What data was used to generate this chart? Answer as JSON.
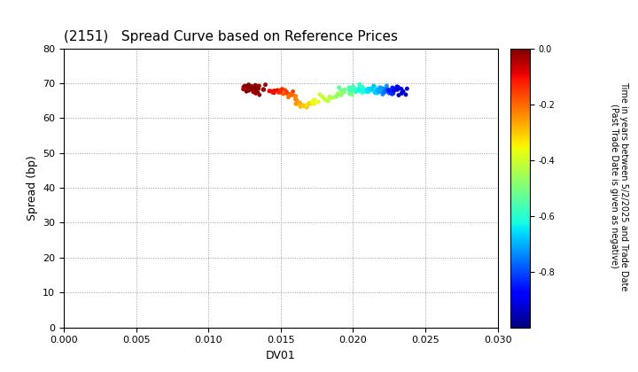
{
  "title": "(2151)   Spread Curve based on Reference Prices",
  "xlabel": "DV01",
  "ylabel": "Spread (bp)",
  "xlim": [
    0.0,
    0.03
  ],
  "ylim": [
    0,
    80
  ],
  "xticks": [
    0.0,
    0.005,
    0.01,
    0.015,
    0.02,
    0.025,
    0.03
  ],
  "yticks": [
    0,
    10,
    20,
    30,
    40,
    50,
    60,
    70,
    80
  ],
  "colorbar_label_line1": "Time in years between 5/2/2025 and Trade Date",
  "colorbar_label_line2": "(Past Trade Date is given as negative)",
  "colorbar_min": -1.0,
  "colorbar_max": 0.0,
  "colorbar_ticks": [
    0.0,
    -0.2,
    -0.4,
    -0.6,
    -0.8
  ],
  "background_color": "#ffffff",
  "grid_color": "#999999",
  "title_fontsize": 11,
  "axis_fontsize": 9,
  "tick_fontsize": 8,
  "cbar_fontsize": 7
}
